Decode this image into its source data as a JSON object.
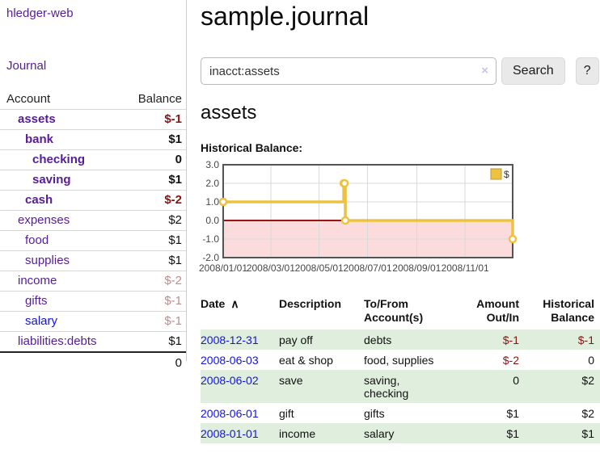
{
  "app": {
    "brand": "hledger-web"
  },
  "sidebar": {
    "journal_link": "Journal",
    "account_header": "Account",
    "balance_header": "Balance",
    "accounts": [
      {
        "name": "assets",
        "level": 1,
        "bold": true,
        "balance": "$-1",
        "balance_class": "neg-strong"
      },
      {
        "name": "bank",
        "level": 2,
        "bold": true,
        "balance": "$1",
        "balance_class": ""
      },
      {
        "name": "checking",
        "level": 3,
        "bold": true,
        "balance": "0",
        "balance_class": ""
      },
      {
        "name": "saving",
        "level": 3,
        "bold": true,
        "balance": "$1",
        "balance_class": ""
      },
      {
        "name": "cash",
        "level": 2,
        "bold": true,
        "balance": "$-2",
        "balance_class": "neg-strong"
      },
      {
        "name": "expenses",
        "level": 1,
        "bold": false,
        "balance": "$2",
        "balance_class": ""
      },
      {
        "name": "food",
        "level": 2,
        "bold": false,
        "balance": "$1",
        "balance_class": ""
      },
      {
        "name": "supplies",
        "level": 2,
        "bold": false,
        "balance": "$1",
        "balance_class": ""
      },
      {
        "name": "income",
        "level": 1,
        "bold": false,
        "balance": "$-2",
        "balance_class": "neg-muted"
      },
      {
        "name": "gifts",
        "level": 2,
        "bold": false,
        "balance": "$-1",
        "balance_class": "neg-muted"
      },
      {
        "name": "salary",
        "level": 2,
        "bold": false,
        "balance": "$-1",
        "balance_class": "neg-muted",
        "link_color": "blue"
      },
      {
        "name": "liabilities:debts",
        "level": 1,
        "bold": false,
        "balance": "$1",
        "balance_class": "",
        "last": true
      }
    ],
    "total": "0"
  },
  "header": {
    "title": "sample.journal"
  },
  "search": {
    "query": "inacct:assets",
    "clear_icon": "×",
    "button_label": "Search",
    "help_label": "?"
  },
  "account_page": {
    "heading": "assets",
    "chart_title": "Historical Balance:"
  },
  "chart_data": {
    "type": "line",
    "step": true,
    "title": "Historical Balance:",
    "legend": {
      "label": "$",
      "position": "top-right"
    },
    "series": [
      {
        "name": "$",
        "color": "#edc240",
        "points": [
          {
            "date": "2008-01-01",
            "day": 0,
            "value": 1
          },
          {
            "date": "2008-06-01",
            "day": 152,
            "value": 2
          },
          {
            "date": "2008-06-02",
            "day": 153,
            "value": 2
          },
          {
            "date": "2008-06-03",
            "day": 154,
            "value": 0
          },
          {
            "date": "2008-12-31",
            "day": 365,
            "value": -1
          }
        ]
      }
    ],
    "xlim_days": [
      0,
      365
    ],
    "xticks": [
      {
        "day": 0,
        "label": "2008/01/01"
      },
      {
        "day": 60,
        "label": "2008/03/01"
      },
      {
        "day": 121,
        "label": "2008/05/01"
      },
      {
        "day": 182,
        "label": "2008/07/01"
      },
      {
        "day": 244,
        "label": "2008/09/01"
      },
      {
        "day": 305,
        "label": "2008/11/01"
      }
    ],
    "ylim": [
      -2,
      3
    ],
    "yticks": [
      {
        "value": 3,
        "label": "3.0"
      },
      {
        "value": 2,
        "label": "2.0"
      },
      {
        "value": 1,
        "label": "1.0"
      },
      {
        "value": 0,
        "label": "0.0"
      },
      {
        "value": -1,
        "label": "-1.0"
      },
      {
        "value": -2,
        "label": "-2.0"
      }
    ],
    "grid": true,
    "colors": {
      "line": "#edc240",
      "marker_fill": "#ffffff",
      "negative_region": "#fbdbdb",
      "zero_line": "#a01111",
      "border": "#545454",
      "gridline": "#d9d9d9",
      "tick_text": "#474747"
    }
  },
  "register": {
    "columns": {
      "date": "Date",
      "sort_icon": "∧",
      "description": "Description",
      "accounts": "To/From\nAccount(s)",
      "amount": "Amount\nOut/In",
      "balance": "Historical\nBalance"
    },
    "rows": [
      {
        "date": "2008-12-31",
        "description": "pay off",
        "accounts": "debts",
        "amount": "$-1",
        "amount_negative": true,
        "balance": "$-1",
        "balance_negative": true
      },
      {
        "date": "2008-06-03",
        "description": "eat & shop",
        "accounts": "food, supplies",
        "amount": "$-2",
        "amount_negative": true,
        "balance": "0",
        "balance_negative": false
      },
      {
        "date": "2008-06-02",
        "description": "save",
        "accounts": "saving,\nchecking",
        "amount": "0",
        "amount_negative": false,
        "balance": "$2",
        "balance_negative": false
      },
      {
        "date": "2008-06-01",
        "description": "gift",
        "accounts": "gifts",
        "amount": "$1",
        "amount_negative": false,
        "balance": "$2",
        "balance_negative": false
      },
      {
        "date": "2008-01-01",
        "description": "income",
        "accounts": "salary",
        "amount": "$1",
        "amount_negative": false,
        "balance": "$1",
        "balance_negative": false
      }
    ]
  }
}
